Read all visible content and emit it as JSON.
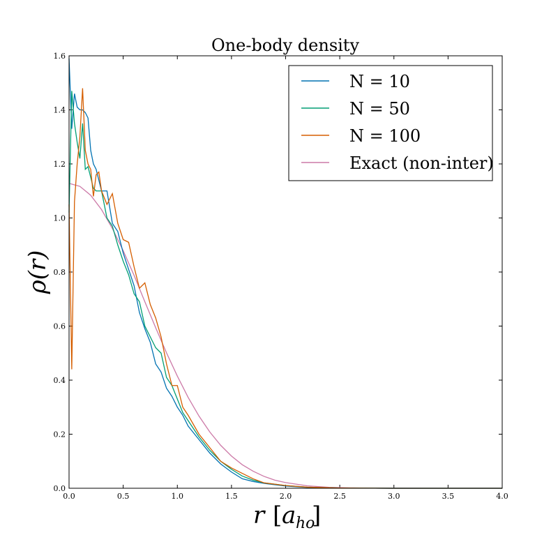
{
  "chart_data": {
    "type": "line",
    "title": "One-body density",
    "xlabel": "r [a_ho]",
    "ylabel": "ρ(r)",
    "xlim": [
      0.0,
      4.0
    ],
    "ylim": [
      0.0,
      1.6
    ],
    "xticks": [
      "0.0",
      "0.5",
      "1.0",
      "1.5",
      "2.0",
      "2.5",
      "3.0",
      "3.5",
      "4.0"
    ],
    "yticks": [
      "0.0",
      "0.2",
      "0.4",
      "0.6",
      "0.8",
      "1.0",
      "1.2",
      "1.4",
      "1.6"
    ],
    "legend_position": "top-right",
    "series": [
      {
        "name": "N = 10",
        "color": "#0072B2",
        "x": [
          0.0,
          0.025,
          0.05,
          0.075,
          0.1,
          0.125,
          0.15,
          0.175,
          0.2,
          0.225,
          0.25,
          0.3,
          0.35,
          0.4,
          0.45,
          0.5,
          0.55,
          0.6,
          0.65,
          0.7,
          0.75,
          0.8,
          0.85,
          0.9,
          0.95,
          1.0,
          1.05,
          1.1,
          1.2,
          1.3,
          1.4,
          1.5,
          1.6,
          1.7,
          1.8,
          2.0,
          2.2,
          2.5,
          3.0,
          3.5,
          4.0
        ],
        "values": [
          1.59,
          1.33,
          1.46,
          1.41,
          1.4,
          1.4,
          1.39,
          1.37,
          1.25,
          1.2,
          1.18,
          1.1,
          1.1,
          0.98,
          0.95,
          0.87,
          0.81,
          0.75,
          0.65,
          0.59,
          0.54,
          0.46,
          0.43,
          0.37,
          0.34,
          0.3,
          0.27,
          0.23,
          0.18,
          0.13,
          0.09,
          0.06,
          0.035,
          0.025,
          0.018,
          0.008,
          0.003,
          0.001,
          0.0,
          0.0,
          0.0
        ]
      },
      {
        "name": "N = 50",
        "color": "#009E73",
        "x": [
          0.0,
          0.025,
          0.05,
          0.075,
          0.1,
          0.125,
          0.15,
          0.175,
          0.2,
          0.225,
          0.25,
          0.3,
          0.35,
          0.4,
          0.45,
          0.5,
          0.55,
          0.6,
          0.65,
          0.7,
          0.75,
          0.8,
          0.85,
          0.9,
          0.95,
          1.0,
          1.05,
          1.1,
          1.2,
          1.3,
          1.4,
          1.5,
          1.6,
          1.7,
          1.8,
          2.0,
          2.2,
          2.5,
          3.0,
          3.5,
          4.0
        ],
        "values": [
          1.02,
          1.47,
          1.35,
          1.28,
          1.22,
          1.35,
          1.18,
          1.19,
          1.15,
          1.11,
          1.1,
          1.1,
          1.0,
          0.97,
          0.9,
          0.84,
          0.79,
          0.72,
          0.69,
          0.6,
          0.56,
          0.52,
          0.5,
          0.41,
          0.38,
          0.33,
          0.28,
          0.25,
          0.19,
          0.14,
          0.1,
          0.07,
          0.045,
          0.03,
          0.02,
          0.01,
          0.004,
          0.001,
          0.0,
          0.0,
          0.0
        ]
      },
      {
        "name": "N = 100",
        "color": "#D55E00",
        "x": [
          0.0,
          0.025,
          0.05,
          0.075,
          0.1,
          0.125,
          0.15,
          0.175,
          0.2,
          0.225,
          0.25,
          0.275,
          0.3,
          0.35,
          0.4,
          0.45,
          0.5,
          0.55,
          0.6,
          0.65,
          0.7,
          0.75,
          0.8,
          0.85,
          0.9,
          0.95,
          1.0,
          1.05,
          1.1,
          1.2,
          1.3,
          1.4,
          1.5,
          1.6,
          1.7,
          1.8,
          2.0,
          2.2,
          2.5,
          3.0,
          3.5,
          4.0
        ],
        "values": [
          1.05,
          0.44,
          1.06,
          1.2,
          1.3,
          1.48,
          1.25,
          1.2,
          1.18,
          1.08,
          1.16,
          1.17,
          1.1,
          1.05,
          1.09,
          0.98,
          0.92,
          0.91,
          0.82,
          0.74,
          0.76,
          0.68,
          0.63,
          0.56,
          0.46,
          0.38,
          0.38,
          0.3,
          0.27,
          0.2,
          0.15,
          0.1,
          0.075,
          0.055,
          0.035,
          0.02,
          0.01,
          0.004,
          0.001,
          0.0,
          0.0,
          0.0
        ]
      },
      {
        "name": "Exact (non-inter)",
        "color": "#CC79A7",
        "formula": "1.128*exp(-r^2)",
        "x": [
          0.0,
          0.1,
          0.2,
          0.3,
          0.4,
          0.5,
          0.6,
          0.7,
          0.8,
          0.9,
          1.0,
          1.1,
          1.2,
          1.3,
          1.4,
          1.5,
          1.6,
          1.7,
          1.8,
          1.9,
          2.0,
          2.2,
          2.4,
          2.6,
          2.8,
          3.0,
          3.5,
          4.0
        ],
        "values": [
          1.128,
          1.117,
          1.084,
          1.031,
          0.961,
          0.879,
          0.788,
          0.69,
          0.594,
          0.501,
          0.415,
          0.336,
          0.267,
          0.208,
          0.159,
          0.119,
          0.087,
          0.063,
          0.044,
          0.03,
          0.021,
          0.009,
          0.0036,
          0.0013,
          0.0004,
          0.0001,
          0.0,
          0.0
        ]
      }
    ]
  }
}
